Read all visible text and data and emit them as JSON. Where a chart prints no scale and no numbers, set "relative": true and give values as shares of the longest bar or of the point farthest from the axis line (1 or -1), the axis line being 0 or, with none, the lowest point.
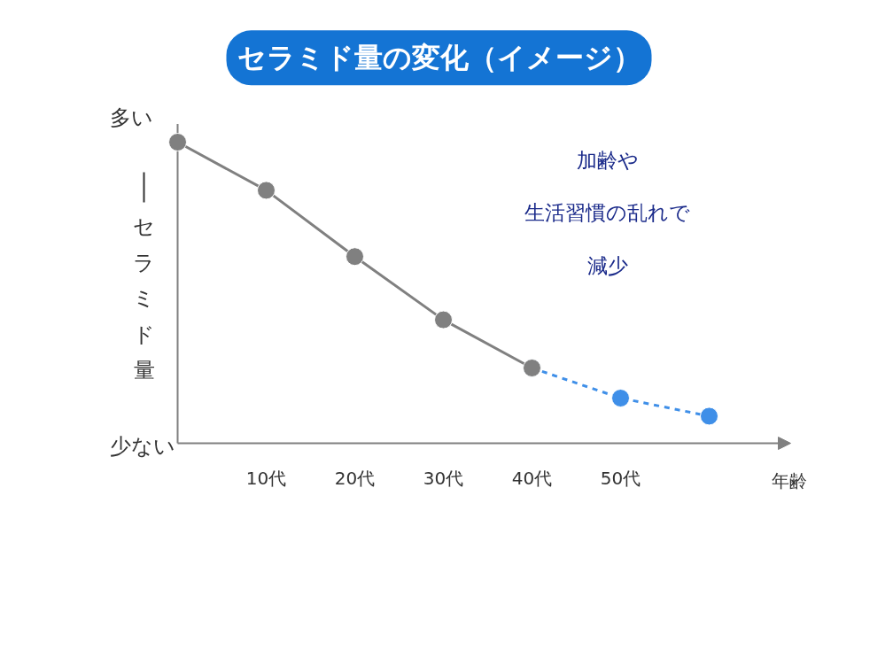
{
  "chart_data": {
    "type": "line",
    "title": "セラミド量の変化（イメージ）",
    "xlabel": "年齢",
    "ylabel": "セラミド量",
    "annotations": [
      "多い",
      "少ない",
      "加齢や",
      "生活習慣の乱れで",
      "減少"
    ],
    "categories": [
      null,
      "10代",
      "20代",
      "30代",
      "40代",
      "50代",
      null
    ],
    "relative": true,
    "marker": "circle",
    "series": [
      {
        "color": "#808080",
        "line_style": "solid",
        "values": [
          1,
          0.84,
          0.62,
          0.41,
          0.25,
          null,
          null
        ]
      },
      {
        "color": "#3f8fe8",
        "line_style": "dashed",
        "values": [
          null,
          null,
          null,
          null,
          0.25,
          0.15,
          0.09
        ]
      }
    ]
  }
}
